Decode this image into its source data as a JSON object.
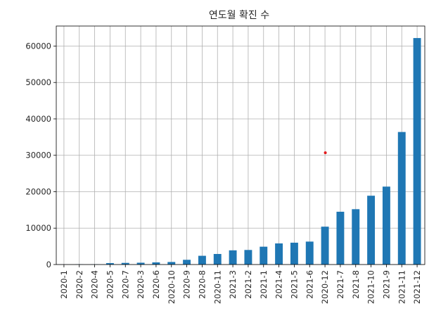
{
  "chart_data": {
    "type": "bar",
    "title": "연도월 확진 수",
    "xlabel": "",
    "ylabel": "",
    "categories": [
      "2020-1",
      "2020-2",
      "2020-4",
      "2020-5",
      "2020-7",
      "2020-3",
      "2020-6",
      "2020-10",
      "2020-9",
      "2020-8",
      "2020-11",
      "2021-3",
      "2021-2",
      "2021-1",
      "2021-4",
      "2021-5",
      "2021-6",
      "2020-12",
      "2021-7",
      "2021-8",
      "2021-10",
      "2021-9",
      "2021-11",
      "2021-12"
    ],
    "values": [
      12,
      60,
      70,
      400,
      450,
      500,
      600,
      700,
      1300,
      2400,
      2900,
      3900,
      4000,
      4900,
      5800,
      6000,
      6300,
      10400,
      14500,
      15200,
      18900,
      21400,
      36400,
      62200
    ],
    "ylim": [
      0,
      65500
    ],
    "yticks": [
      0,
      10000,
      20000,
      30000,
      40000,
      50000,
      60000
    ],
    "grid": true,
    "bar_color": "#1f77b4",
    "marker": {
      "x_category": "2020-12",
      "y": 30700,
      "color": "#e31a1c"
    }
  }
}
